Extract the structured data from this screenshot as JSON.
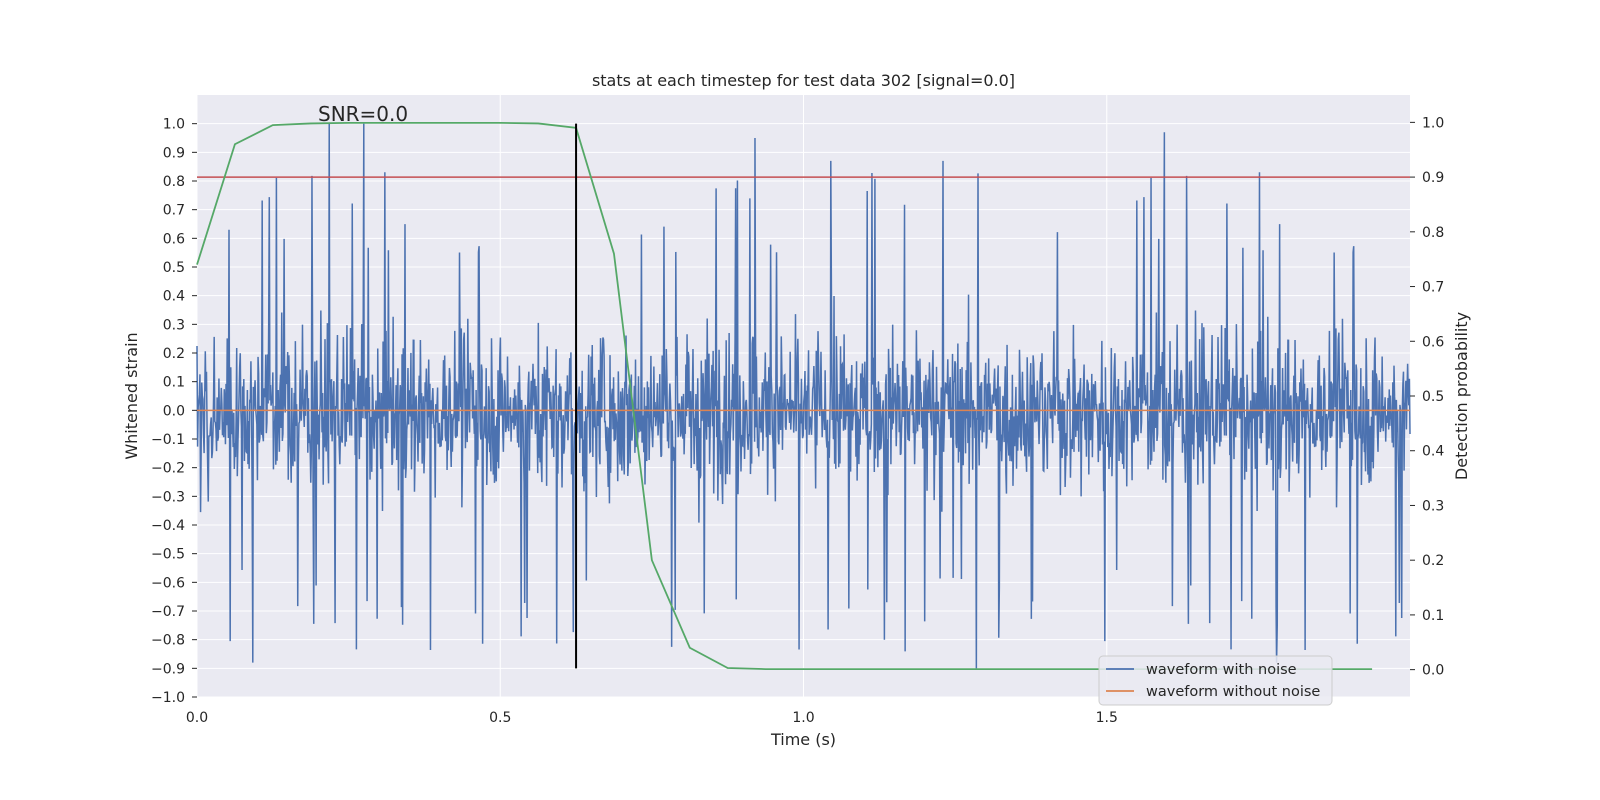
{
  "chart_data": {
    "type": "line",
    "title": "stats at each timestep for test data 302 [signal=0.0]",
    "xlabel": "Time (s)",
    "ylabel": "Whitened strain",
    "y2label": "Detection probability",
    "annotation": "SNR=0.0",
    "xlim": [
      0.0,
      2.0
    ],
    "ylim": [
      -1.0,
      1.1
    ],
    "y2lim": [
      -0.05,
      1.05
    ],
    "xticks": [
      0.0,
      0.5,
      1.0,
      1.5
    ],
    "xtick_labels": [
      "0.0",
      "0.5",
      "1.0",
      "1.5"
    ],
    "yticks": [
      -1.0,
      -0.9,
      -0.8,
      -0.7,
      -0.6,
      -0.5,
      -0.4,
      -0.3,
      -0.2,
      -0.1,
      0.0,
      0.1,
      0.2,
      0.3,
      0.4,
      0.5,
      0.6,
      0.7,
      0.8,
      0.9,
      1.0
    ],
    "ytick_labels": [
      "−1.0",
      "−0.9",
      "−0.8",
      "−0.7",
      "−0.6",
      "−0.5",
      "−0.4",
      "−0.3",
      "−0.2",
      "−0.1",
      "0.0",
      "0.1",
      "0.2",
      "0.3",
      "0.4",
      "0.5",
      "0.6",
      "0.7",
      "0.8",
      "0.9",
      "1.0"
    ],
    "y2ticks": [
      0.0,
      0.1,
      0.2,
      0.3,
      0.4,
      0.5,
      0.6,
      0.7,
      0.8,
      0.9,
      1.0
    ],
    "y2tick_labels": [
      "0.0",
      "0.1",
      "0.2",
      "0.3",
      "0.4",
      "0.5",
      "0.6",
      "0.7",
      "0.8",
      "0.9",
      "1.0"
    ],
    "grid": true,
    "legend": {
      "placement": "lower-right"
    },
    "series": [
      {
        "name": "waveform with noise",
        "axis": "left",
        "color": "#4c72b0",
        "description_values": {
          "x_start": 0.0,
          "x_end": 2.0,
          "samples": 2048,
          "min": -0.9,
          "max": 1.0
        }
      },
      {
        "name": "waveform without noise",
        "axis": "left",
        "color": "#dd8452",
        "x": [
          0.0,
          2.0
        ],
        "y": [
          0.0,
          0.0
        ]
      },
      {
        "axis": "right",
        "color": "#55a868",
        "x": [
          0.0,
          0.0625,
          0.125,
          0.1875,
          0.25,
          0.3125,
          0.375,
          0.4375,
          0.5,
          0.5625,
          0.625,
          0.6875,
          0.75,
          0.8125,
          0.875,
          0.9375,
          1.0,
          1.0625,
          1.125,
          1.1875,
          1.25,
          1.3125,
          1.375,
          1.4375,
          1.5,
          1.5625,
          1.625,
          1.6875,
          1.75,
          1.8125,
          1.9375
        ],
        "y": [
          0.74,
          0.96,
          0.995,
          0.998,
          0.999,
          0.999,
          0.999,
          0.999,
          0.999,
          0.998,
          0.99,
          0.76,
          0.2,
          0.04,
          0.003,
          0.001,
          0.001,
          0.001,
          0.001,
          0.001,
          0.001,
          0.001,
          0.001,
          0.001,
          0.001,
          0.001,
          0.001,
          0.001,
          0.001,
          0.001,
          0.001
        ]
      }
    ],
    "threshold_line": {
      "axis": "right",
      "y": 0.9,
      "color": "#c44e52"
    },
    "marker_line": {
      "axis": "left",
      "x": 0.625,
      "y_from": -0.9,
      "y_to": 1.0,
      "color": "#000000"
    },
    "colors": {
      "plot_bg": "#eaeaf2",
      "grid": "#ffffff"
    }
  }
}
